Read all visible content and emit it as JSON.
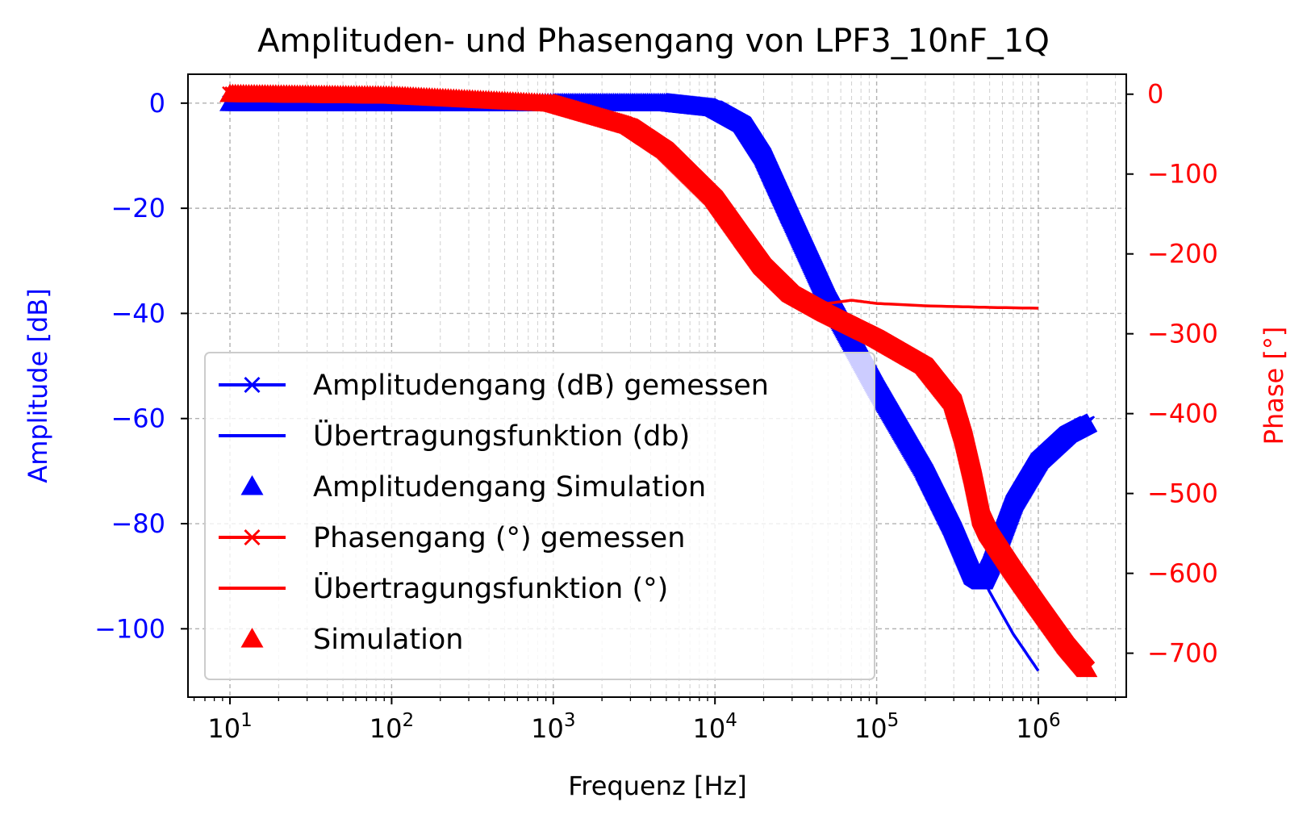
{
  "chart_data": {
    "type": "line",
    "title": "Amplituden- und Phasengang von LPF3_10nF_1Q",
    "xlabel": "Frequenz [Hz]",
    "ylabel_left": "Amplitude [dB]",
    "ylabel_right": "Phase [°]",
    "x_scale": "log",
    "xlim": [
      5.5,
      3500000
    ],
    "ylim_left": [
      -113,
      5.5
    ],
    "ylim_right": [
      -755,
      25
    ],
    "x_ticks": [
      10,
      100,
      1000,
      10000,
      100000,
      1000000
    ],
    "x_tick_labels": [
      {
        "base": "10",
        "exp": "1"
      },
      {
        "base": "10",
        "exp": "2"
      },
      {
        "base": "10",
        "exp": "3"
      },
      {
        "base": "10",
        "exp": "4"
      },
      {
        "base": "10",
        "exp": "5"
      },
      {
        "base": "10",
        "exp": "6"
      }
    ],
    "y_left_ticks": [
      0,
      -20,
      -40,
      -60,
      -80,
      -100
    ],
    "y_left_tick_labels": [
      "0",
      "−20",
      "−40",
      "−60",
      "−80",
      "−100"
    ],
    "y_right_ticks": [
      0,
      -100,
      -200,
      -300,
      -400,
      -500,
      -600,
      -700
    ],
    "y_right_tick_labels": [
      "0",
      "−100",
      "−200",
      "−300",
      "−400",
      "−500",
      "−600",
      "−700"
    ],
    "grid": true,
    "legend_position": "lower-left",
    "colors": {
      "amplitude": "#0000ff",
      "phase": "#ff0000"
    },
    "series": [
      {
        "name": "Amplitudengang (dB) gemessen",
        "axis": "left",
        "style": "line-x",
        "color": "#0000ff",
        "x": [
          10,
          100,
          1000,
          5000,
          10000,
          15000,
          20000,
          30000,
          50000,
          100000,
          200000,
          300000,
          400000,
          450000,
          500000,
          700000,
          1000000,
          1500000,
          2000000
        ],
        "y": [
          0,
          0,
          0,
          0,
          -1,
          -4,
          -10,
          -22,
          -37,
          -54,
          -70,
          -81,
          -90,
          -91,
          -88,
          -76,
          -68,
          -63,
          -61
        ]
      },
      {
        "name": "Übertragungsfunktion (db)",
        "axis": "left",
        "style": "line",
        "color": "#0000ff",
        "x": [
          10,
          100,
          1000,
          5000,
          10000,
          15000,
          20000,
          30000,
          50000,
          100000,
          200000,
          300000,
          400000,
          450000,
          500000,
          700000,
          1000000
        ],
        "y": [
          0,
          0,
          0,
          0,
          -1,
          -4,
          -10,
          -22,
          -37,
          -54,
          -70,
          -80,
          -87,
          -90,
          -93,
          -101,
          -108
        ]
      },
      {
        "name": "Amplitudengang Simulation",
        "axis": "left",
        "style": "triangle",
        "color": "#0000ff",
        "x": [
          10,
          100,
          1000,
          5000,
          10000,
          15000,
          20000,
          30000,
          50000,
          100000,
          200000,
          300000,
          400000,
          450000,
          500000,
          700000,
          1000000,
          1500000,
          2000000
        ],
        "y": [
          0,
          0,
          0,
          0,
          -1,
          -4,
          -10,
          -22,
          -37,
          -54,
          -70,
          -81,
          -90,
          -91,
          -88,
          -76,
          -68,
          -63,
          -61
        ]
      },
      {
        "name": "Phasengang (°) gemessen",
        "axis": "right",
        "style": "line-x",
        "color": "#ff0000",
        "x": [
          10,
          100,
          1000,
          3000,
          5000,
          10000,
          15000,
          20000,
          30000,
          50000,
          100000,
          200000,
          300000,
          350000,
          400000,
          450000,
          500000,
          700000,
          1000000,
          1500000,
          2000000
        ],
        "y": [
          0,
          -2,
          -12,
          -40,
          -70,
          -130,
          -180,
          -215,
          -250,
          -275,
          -305,
          -340,
          -385,
          -430,
          -480,
          -530,
          -550,
          -595,
          -640,
          -690,
          -720
        ]
      },
      {
        "name": "Übertragungsfunktion (°)",
        "axis": "right",
        "style": "line",
        "color": "#ff0000",
        "x": [
          10,
          100,
          1000,
          3000,
          5000,
          10000,
          15000,
          20000,
          30000,
          50000,
          70000,
          100000,
          200000,
          500000,
          1000000
        ],
        "y": [
          0,
          -2,
          -12,
          -40,
          -70,
          -130,
          -180,
          -215,
          -245,
          -262,
          -258,
          -262,
          -265,
          -267,
          -268
        ]
      },
      {
        "name": "Simulation",
        "axis": "right",
        "style": "triangle",
        "color": "#ff0000",
        "x": [
          10,
          100,
          1000,
          3000,
          5000,
          10000,
          15000,
          20000,
          30000,
          50000,
          100000,
          200000,
          300000,
          350000,
          400000,
          450000,
          500000,
          700000,
          1000000,
          1500000,
          2000000
        ],
        "y": [
          0,
          -2,
          -12,
          -40,
          -70,
          -130,
          -180,
          -215,
          -250,
          -275,
          -305,
          -340,
          -385,
          -430,
          -480,
          -530,
          -550,
          -595,
          -640,
          -690,
          -720
        ]
      }
    ]
  }
}
